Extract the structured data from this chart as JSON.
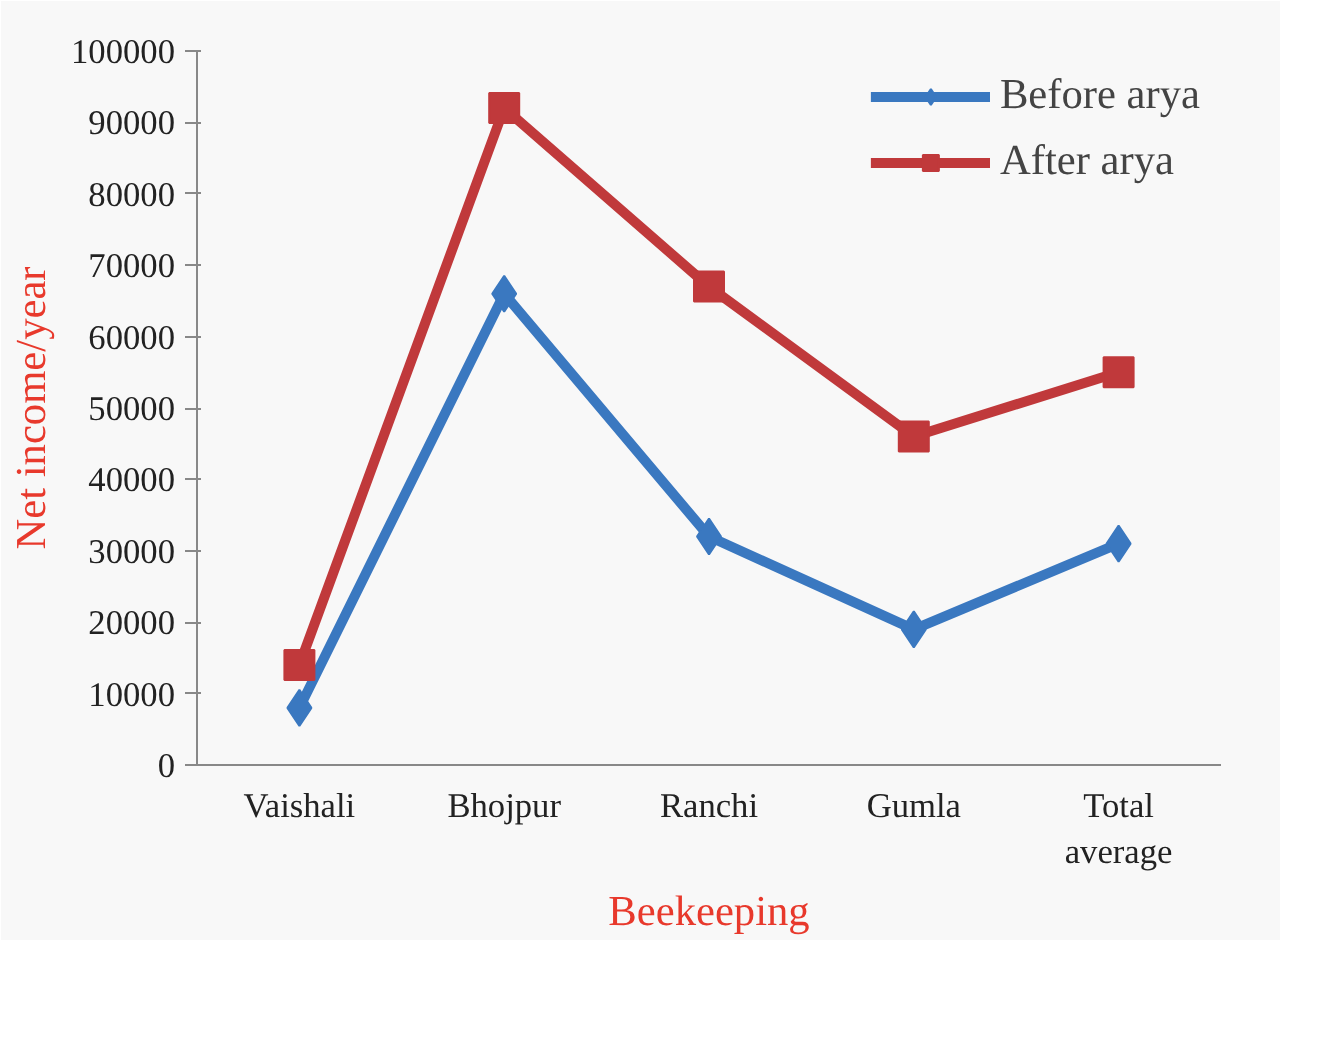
{
  "chart_data": {
    "type": "line",
    "xlabel": "Beekeeping",
    "ylabel": "Net income/year",
    "categories": [
      "Vaishali",
      "Bhojpur",
      "Ranchi",
      "Gumla",
      "Total average"
    ],
    "series": [
      {
        "name": "Before arya",
        "color": "#3a78c0",
        "marker": "diamond",
        "values": [
          8000,
          66000,
          32000,
          19000,
          31000
        ]
      },
      {
        "name": "After arya",
        "color": "#c0393b",
        "marker": "square",
        "values": [
          14000,
          92000,
          67000,
          46000,
          55000
        ]
      }
    ],
    "ylim": [
      0,
      100000
    ],
    "yticks": [
      0,
      10000,
      20000,
      30000,
      40000,
      50000,
      60000,
      70000,
      80000,
      90000,
      100000
    ],
    "grid": false,
    "legend": "top right"
  }
}
